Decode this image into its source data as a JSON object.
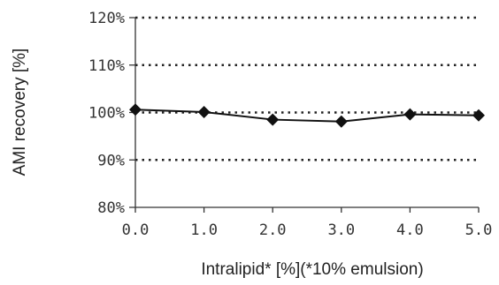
{
  "chart_data": {
    "type": "line",
    "xlabel": "Intralipid* [%](*10% emulsion)",
    "ylabel": "AMI recovery [%]",
    "x_ticks": [
      "0.0",
      "1.0",
      "2.0",
      "3.0",
      "4.0",
      "5.0"
    ],
    "y_ticks": [
      "80%",
      "90%",
      "100%",
      "110%",
      "120%"
    ],
    "xlim": [
      0,
      5
    ],
    "ylim": [
      80,
      120
    ],
    "y_grid_values": [
      90,
      100,
      110,
      120
    ],
    "grid": "horizontal dotted",
    "legend": "none",
    "marker": "diamond",
    "series": [
      {
        "x": [
          0.0,
          1.0,
          2.0,
          3.0,
          4.0,
          5.0
        ],
        "y": [
          100.6,
          100.1,
          98.5,
          98.1,
          99.6,
          99.4
        ]
      }
    ]
  }
}
